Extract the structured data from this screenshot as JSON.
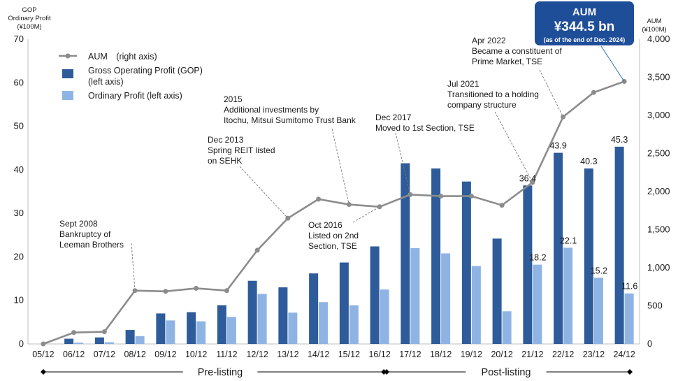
{
  "chart_data": {
    "type": "bar",
    "categories": [
      "05/12",
      "06/12",
      "07/12",
      "08/12",
      "09/12",
      "10/12",
      "11/12",
      "12/12",
      "13/12",
      "14/12",
      "15/12",
      "16/12",
      "17/12",
      "18/12",
      "19/12",
      "20/12",
      "21/12",
      "22/12",
      "23/12",
      "24/12"
    ],
    "series": [
      {
        "name": "Gross Operating Profit (GOP)\n(left axis)",
        "type": "bar",
        "axis": "left",
        "color": "#2e5b9a",
        "values": [
          0,
          1.2,
          1.5,
          3.2,
          7.0,
          7.3,
          8.9,
          14.5,
          13.0,
          16.2,
          18.7,
          22.4,
          41.5,
          40.3,
          37.3,
          24.2,
          36.4,
          43.9,
          40.3,
          45.3
        ]
      },
      {
        "name": "Ordinary Profit (left axis)",
        "type": "bar",
        "axis": "left",
        "color": "#8fb4e3",
        "values": [
          0,
          0.3,
          0.4,
          1.8,
          5.4,
          5.2,
          6.2,
          11.5,
          7.2,
          9.6,
          8.9,
          12.5,
          22.0,
          20.8,
          17.9,
          7.5,
          18.2,
          22.1,
          15.2,
          11.6
        ]
      },
      {
        "name": "AUM　(right axis)",
        "type": "line",
        "axis": "right",
        "color": "#8c8c8c",
        "values": [
          0,
          150,
          160,
          700,
          690,
          730,
          700,
          1230,
          1650,
          1900,
          1830,
          1800,
          1960,
          1940,
          1940,
          1820,
          2120,
          2980,
          3300,
          3445
        ]
      }
    ],
    "left_axis": {
      "label_lines": [
        "GOP",
        "Ordinary Profit",
        "(¥100M)"
      ],
      "range": [
        0,
        70
      ],
      "ticks": [
        0,
        10,
        20,
        30,
        40,
        50,
        60,
        70
      ]
    },
    "right_axis": {
      "label_lines": [
        "AUM",
        "(¥100M)"
      ],
      "range": [
        0,
        4000
      ],
      "ticks": [
        "0",
        "500",
        "1,000",
        "1,500",
        "2,000",
        "2,500",
        "3,000",
        "3,500",
        "4,000"
      ]
    },
    "data_labels": {
      "gop": [
        {
          "index": 16,
          "text": "36.4"
        },
        {
          "index": 17,
          "text": "43.9"
        },
        {
          "index": 18,
          "text": "40.3"
        },
        {
          "index": 19,
          "text": "45.3"
        }
      ],
      "ordinary": [
        {
          "index": 16,
          "text": "18.2"
        },
        {
          "index": 17,
          "text": "22.1"
        },
        {
          "index": 18,
          "text": "15.2"
        },
        {
          "index": 19,
          "text": "11.6"
        }
      ]
    },
    "legend": {
      "position": "top-left"
    },
    "grid": false,
    "annotations": [
      {
        "index": 3,
        "value_axis": "right",
        "lines": [
          "Sept 2008",
          "Bankruptcy of",
          "Leeman Brothers"
        ]
      },
      {
        "index": 8,
        "value_axis": "right",
        "lines": [
          "Dec 2013",
          "Spring REIT listed",
          "on SEHK"
        ]
      },
      {
        "index": 10,
        "value_axis": "right",
        "lines": [
          "2015",
          "Additional investments by",
          "Itochu, Mitsui Sumitomo Trust Bank"
        ]
      },
      {
        "index": 11,
        "value_axis": "right",
        "lines": [
          "Oct 2016",
          "Listed on 2nd",
          "Section, TSE"
        ]
      },
      {
        "index": 12,
        "value_axis": "right",
        "lines": [
          "Dec 2017",
          "Moved to 1st Section, TSE"
        ]
      },
      {
        "index": 16,
        "value_axis": "right",
        "lines": [
          "Jul 2021",
          "Transitioned to a holding",
          "company structure"
        ]
      },
      {
        "index": 17,
        "value_axis": "right",
        "lines": [
          "Apr 2022",
          "Became a constituent of",
          "Prime Market, TSE"
        ]
      }
    ],
    "callout": {
      "lines": [
        "AUM",
        "¥344.5 bn",
        "(as of the end of Dec. 2024)"
      ],
      "color": "#1f4e99"
    },
    "periods": [
      {
        "label": "Pre-listing",
        "from": 0,
        "to": 11
      },
      {
        "label": "Post-listing",
        "from": 11,
        "to": 19
      }
    ]
  }
}
